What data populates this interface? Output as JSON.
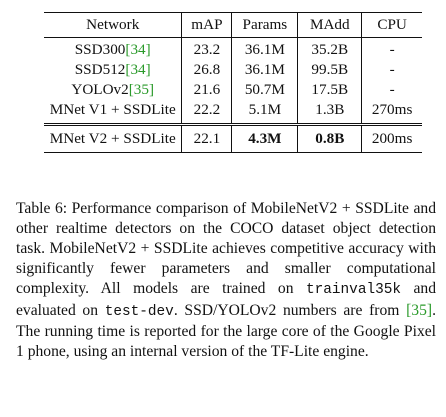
{
  "table": {
    "headers": [
      "Network",
      "mAP",
      "Params",
      "MAdd",
      "CPU"
    ],
    "rows": [
      {
        "network": "SSD300",
        "cite": "[34]",
        "map": "23.2",
        "params": "36.1M",
        "madd": "35.2B",
        "cpu": "-"
      },
      {
        "network": "SSD512",
        "cite": "[34]",
        "map": "26.8",
        "params": "36.1M",
        "madd": "99.5B",
        "cpu": "-"
      },
      {
        "network": "YOLOv2",
        "cite": "[35]",
        "map": "21.6",
        "params": "50.7M",
        "madd": "17.5B",
        "cpu": "-"
      },
      {
        "network": "MNet V1 + SSDLite",
        "cite": "",
        "map": "22.2",
        "params": "5.1M",
        "madd": "1.3B",
        "cpu": "270ms"
      }
    ],
    "final_row": {
      "network": "MNet V2 + SSDLite",
      "map": "22.1",
      "params": "4.3M",
      "madd": "0.8B",
      "cpu": "200ms"
    }
  },
  "caption": {
    "part1": "Table 6:  Performance comparison of MobileNetV2 + SSDLite and other realtime detectors on the COCO dataset object detection task.  MobileNetV2 + SSDLite achieves competitive accuracy with significantly fewer parameters and smaller computational complexity.  All models are trained on ",
    "code1": "trainval35k",
    "part2": " and evaluated on ",
    "code2": "test-dev",
    "part3": ". SSD/YOLOv2 numbers are from ",
    "cite": "[35]",
    "part4": ". The running time is reported for the large core of the Google Pixel 1 phone, using an internal version of the TF-Lite engine."
  }
}
